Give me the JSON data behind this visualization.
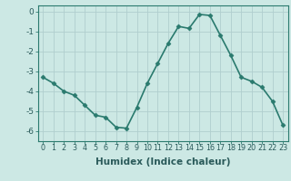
{
  "x": [
    0,
    1,
    2,
    3,
    4,
    5,
    6,
    7,
    8,
    9,
    10,
    11,
    12,
    13,
    14,
    15,
    16,
    17,
    18,
    19,
    20,
    21,
    22,
    23
  ],
  "y": [
    -3.3,
    -3.6,
    -4.0,
    -4.2,
    -4.7,
    -5.2,
    -5.3,
    -5.8,
    -5.85,
    -4.8,
    -3.6,
    -2.6,
    -1.6,
    -0.75,
    -0.85,
    -0.15,
    -0.2,
    -1.2,
    -2.2,
    -3.3,
    -3.5,
    -3.8,
    -4.5,
    -5.7
  ],
  "xlabel": "Humidex (Indice chaleur)",
  "line_color": "#2a7a6e",
  "marker": "D",
  "marker_size": 2.5,
  "bg_color": "#cce8e4",
  "grid_color": "#b0cece",
  "ylim": [
    -6.5,
    0.3
  ],
  "xlim": [
    -0.5,
    23.5
  ],
  "yticks": [
    0,
    -1,
    -2,
    -3,
    -4,
    -5,
    -6
  ],
  "xticks": [
    0,
    1,
    2,
    3,
    4,
    5,
    6,
    7,
    8,
    9,
    10,
    11,
    12,
    13,
    14,
    15,
    16,
    17,
    18,
    19,
    20,
    21,
    22,
    23
  ],
  "tick_color": "#2a5a5a",
  "xlabel_fontsize": 7.5,
  "xlabel_fontweight": "bold",
  "ytick_fontsize": 6.5,
  "xtick_fontsize": 5.8,
  "linewidth": 1.2
}
